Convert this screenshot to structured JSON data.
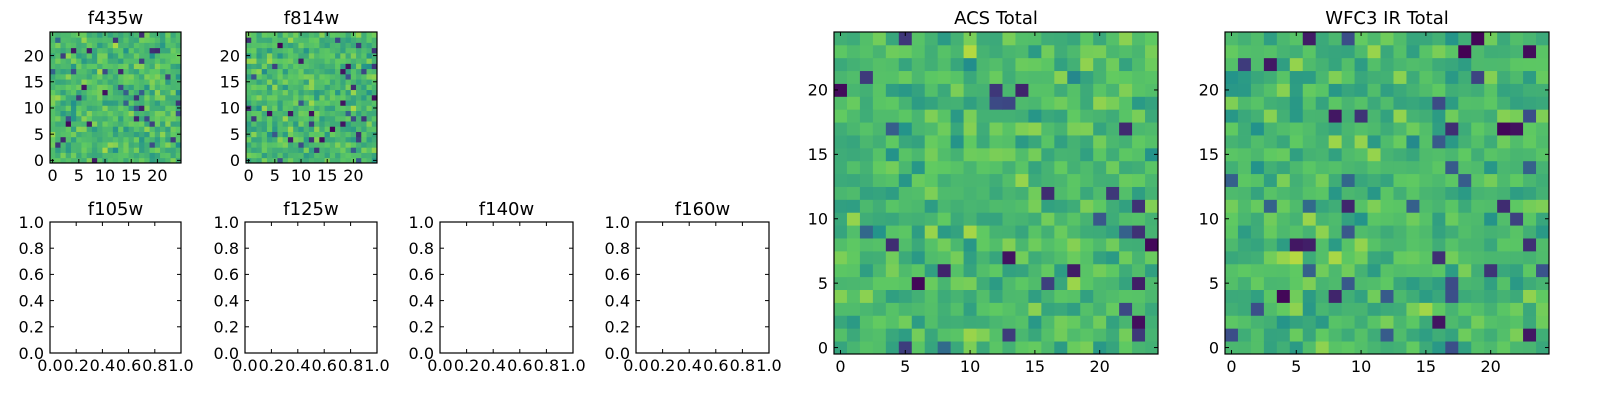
{
  "colors": {
    "background": "#ffffff",
    "axes_edge": "#000000",
    "colormap": "viridis",
    "colormap_stops": [
      "#440154",
      "#3b528b",
      "#21918c",
      "#5ec962",
      "#fde725"
    ]
  },
  "chart_data": [
    {
      "type": "heatmap",
      "title": "f435w",
      "grid_size": 25,
      "xlim": [
        -0.5,
        24.5
      ],
      "ylim": [
        -0.5,
        24.5
      ],
      "xticks": [
        0,
        5,
        10,
        15,
        20
      ],
      "yticks": [
        0,
        5,
        10,
        15,
        20
      ],
      "colormap": "viridis",
      "seed": 435,
      "values": []
    },
    {
      "type": "heatmap",
      "title": "f814w",
      "grid_size": 25,
      "xlim": [
        -0.5,
        24.5
      ],
      "ylim": [
        -0.5,
        24.5
      ],
      "xticks": [
        0,
        5,
        10,
        15,
        20
      ],
      "yticks": [
        0,
        5,
        10,
        15,
        20
      ],
      "colormap": "viridis",
      "seed": 814,
      "values": []
    },
    {
      "type": "empty",
      "title": "f105w",
      "xlim": [
        0,
        1
      ],
      "ylim": [
        0,
        1
      ],
      "xtick_labels": [
        "0.0",
        "0.2",
        "0.4",
        "0.6",
        "0.8",
        "1.0"
      ],
      "ytick_labels": [
        "0.0",
        "0.2",
        "0.4",
        "0.6",
        "0.8",
        "1.0"
      ]
    },
    {
      "type": "empty",
      "title": "f125w",
      "xlim": [
        0,
        1
      ],
      "ylim": [
        0,
        1
      ],
      "xtick_labels": [
        "0.0",
        "0.2",
        "0.4",
        "0.6",
        "0.8",
        "1.0"
      ],
      "ytick_labels": [
        "0.0",
        "0.2",
        "0.4",
        "0.6",
        "0.8",
        "1.0"
      ]
    },
    {
      "type": "empty",
      "title": "f140w",
      "xlim": [
        0,
        1
      ],
      "ylim": [
        0,
        1
      ],
      "xtick_labels": [
        "0.0",
        "0.2",
        "0.4",
        "0.6",
        "0.8",
        "1.0"
      ],
      "ytick_labels": [
        "0.0",
        "0.2",
        "0.4",
        "0.6",
        "0.8",
        "1.0"
      ]
    },
    {
      "type": "empty",
      "title": "f160w",
      "xlim": [
        0,
        1
      ],
      "ylim": [
        0,
        1
      ],
      "xtick_labels": [
        "0.0",
        "0.2",
        "0.4",
        "0.6",
        "0.8",
        "1.0"
      ],
      "ytick_labels": [
        "0.0",
        "0.2",
        "0.4",
        "0.6",
        "0.8",
        "1.0"
      ]
    },
    {
      "type": "heatmap",
      "title": "ACS Total",
      "grid_size": 25,
      "xlim": [
        -0.5,
        24.5
      ],
      "ylim": [
        -0.5,
        24.5
      ],
      "xticks": [
        0,
        5,
        10,
        15,
        20
      ],
      "yticks": [
        0,
        5,
        10,
        15,
        20
      ],
      "colormap": "viridis",
      "seed": 1001,
      "values": []
    },
    {
      "type": "heatmap",
      "title": "WFC3 IR Total",
      "grid_size": 25,
      "xlim": [
        -0.5,
        24.5
      ],
      "ylim": [
        -0.5,
        24.5
      ],
      "xticks": [
        0,
        5,
        10,
        15,
        20
      ],
      "yticks": [
        0,
        5,
        10,
        15,
        20
      ],
      "colormap": "viridis",
      "seed": 2002,
      "values": []
    }
  ]
}
